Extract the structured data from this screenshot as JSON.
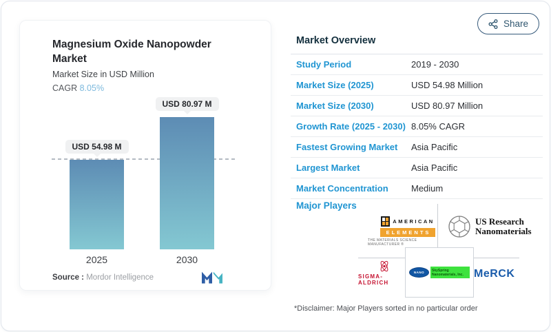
{
  "share": {
    "label": "Share"
  },
  "left_card": {
    "title": "Magnesium Oxide Nanopowder Market",
    "subtitle": "Market Size in USD Million",
    "cagr_label": "CAGR",
    "cagr_value": "8.05%",
    "source_label": "Source :",
    "source_value": "Mordor Intelligence"
  },
  "chart_data": {
    "type": "bar",
    "title": "Magnesium Oxide Nanopowder Market",
    "ylabel": "Market Size in USD Million",
    "categories": [
      "2025",
      "2030"
    ],
    "values": [
      54.98,
      80.97
    ],
    "bar_labels": [
      "USD 54.98 M",
      "USD 80.97 M"
    ],
    "cagr": "8.05%",
    "ylim": [
      0,
      81
    ],
    "grid": false,
    "legend": "none",
    "annotations": [
      "dashed horizontal reference line at the 2025 value"
    ]
  },
  "overview": {
    "heading": "Market Overview",
    "rows": [
      {
        "label": "Study Period",
        "value": "2019 - 2030"
      },
      {
        "label": "Market Size (2025)",
        "value": "USD 54.98 Million"
      },
      {
        "label": "Market Size (2030)",
        "value": "USD 80.97 Million"
      },
      {
        "label": "Growth Rate (2025 - 2030)",
        "value": "8.05% CAGR"
      },
      {
        "label": "Fastest Growing Market",
        "value": "Asia Pacific"
      },
      {
        "label": "Largest Market",
        "value": "Asia Pacific"
      },
      {
        "label": "Market Concentration",
        "value": "Medium"
      }
    ],
    "major_players_label": "Major Players",
    "players": {
      "american_elements": {
        "word1": "AMERICAN",
        "word2": "ELEMENTS",
        "tagline": "THE MATERIALS SCIENCE MANUFACTURER ®"
      },
      "us_research": {
        "line1": "US Research",
        "line2": "Nanomaterials"
      },
      "sigma_aldrich": {
        "text": "SIGMA-ALDRICH"
      },
      "skyspring": {
        "badge": "NANO",
        "line1": "SkySpring",
        "line2": "Nanomaterials, Inc."
      },
      "merck": {
        "text": "MeRCK"
      }
    },
    "disclaimer": "*Disclaimer: Major Players sorted in no particular order"
  },
  "colors": {
    "accent_blue": "#2095d2",
    "cagr_blue": "#7cb9dd",
    "bar_top": "#5d8cb4",
    "bar_bottom": "#84c8d2",
    "share_navy": "#2f566f",
    "heading_navy": "#14303e",
    "american_elements_orange": "#f0a32f",
    "sigma_red": "#c51230",
    "merck_blue": "#1a5cab",
    "skyspring_green": "#3ee23e"
  }
}
